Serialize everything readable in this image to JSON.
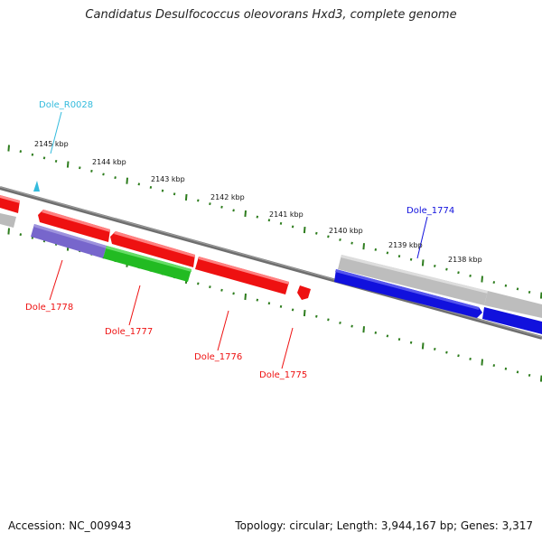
{
  "title": "Candidatus Desulfococcus oleovorans Hxd3, complete genome",
  "footer": {
    "accession": "Accession: NC_009943",
    "summary": "Topology: circular; Length: 3,944,167 bp; Genes: 3,317"
  },
  "ticks": [
    "2145 kbp",
    "2144 kbp",
    "2143 kbp",
    "2142 kbp",
    "2141 kbp",
    "2140 kbp",
    "2139 kbp",
    "2138 kbp"
  ],
  "genes": {
    "dole_r0028": "Dole_R0028",
    "dole_1774": "Dole_1774",
    "dole_1775": "Dole_1775",
    "dole_1776": "Dole_1776",
    "dole_1777": "Dole_1777",
    "dole_1778": "Dole_1778"
  },
  "colors": {
    "forward_gene": "#ee1111",
    "reverse_gene": "#1111dd",
    "green_gene": "#22bb22",
    "purple_gene": "#7766cc",
    "rna_gene": "#33bbdd",
    "tick": "#2e7d1e",
    "backbone": "#777777"
  }
}
